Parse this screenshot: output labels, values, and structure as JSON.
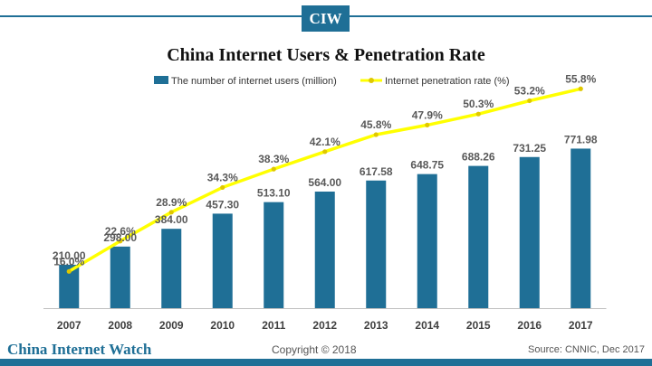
{
  "header": {
    "logo_text": "CIW"
  },
  "footer": {
    "brand": "China Internet Watch",
    "copyright": "Copyright © 2018",
    "source": "Source: CNNIC, Dec 2017"
  },
  "colors": {
    "bar": "#1f6f96",
    "line": "#ffff00",
    "line_marker": "#e0c800",
    "label": "#595959"
  },
  "chart_data": {
    "type": "bar",
    "title": "China Internet Users & Penetration Rate",
    "categories": [
      "2007",
      "2008",
      "2009",
      "2010",
      "2011",
      "2012",
      "2013",
      "2014",
      "2015",
      "2016",
      "2017"
    ],
    "series": [
      {
        "name": "The number of internet users (million)",
        "type": "bar",
        "values": [
          210.0,
          298.0,
          384.0,
          457.3,
          513.1,
          564.0,
          617.58,
          648.75,
          688.26,
          731.25,
          771.98
        ],
        "labels": [
          "210.00",
          "298.00",
          "384.00",
          "457.30",
          "513.10",
          "564.00",
          "617.58",
          "648.75",
          "688.26",
          "731.25",
          "771.98"
        ]
      },
      {
        "name": "Internet penetration rate (%)",
        "type": "line",
        "values": [
          16.0,
          22.6,
          28.9,
          34.3,
          38.3,
          42.1,
          45.8,
          47.9,
          50.3,
          53.2,
          55.8
        ],
        "labels": [
          "16.0%",
          "22.6%",
          "28.9%",
          "34.3%",
          "38.3%",
          "42.1%",
          "45.8%",
          "47.9%",
          "50.3%",
          "53.2%",
          "55.8%"
        ]
      }
    ],
    "legend_position": "top",
    "grid": false
  }
}
